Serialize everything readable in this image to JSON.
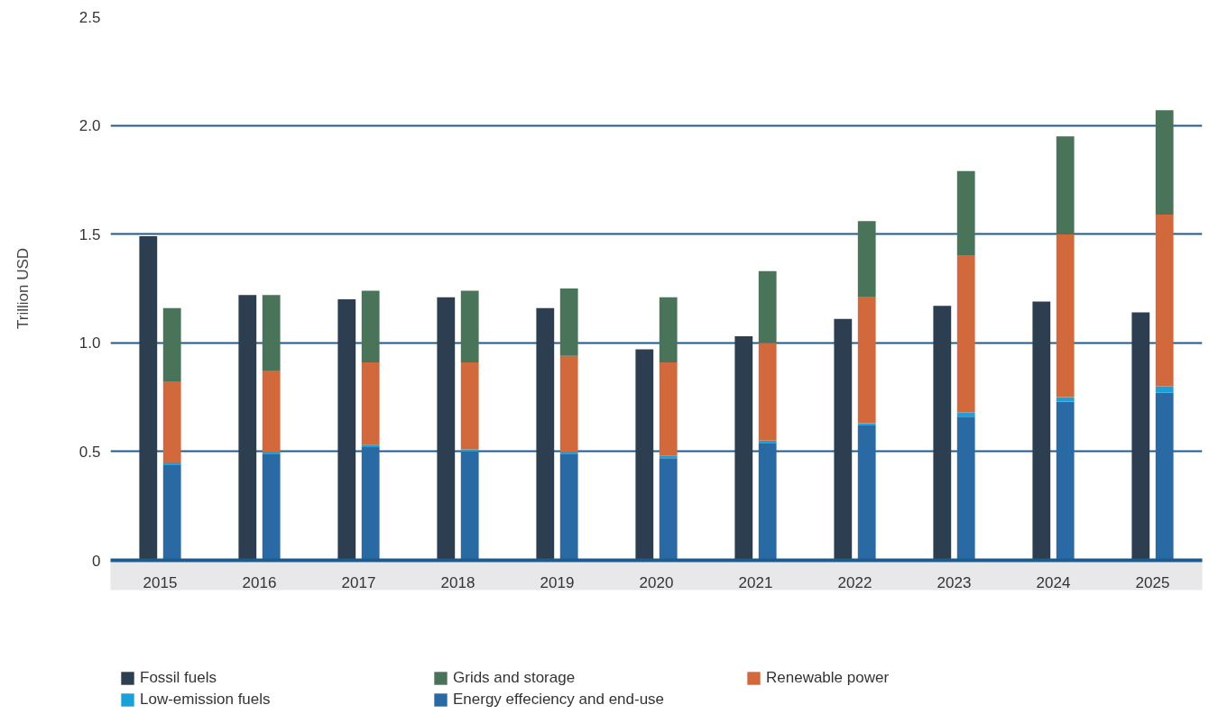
{
  "chart_data": {
    "type": "bar",
    "ylabel": "Trillion USD",
    "categories": [
      "2015",
      "2016",
      "2017",
      "2018",
      "2019",
      "2020",
      "2021",
      "2022",
      "2023",
      "2024",
      "2025"
    ],
    "series": [
      {
        "name": "Fossil fuels",
        "color": "#2c3e50",
        "values": [
          1.49,
          1.22,
          1.2,
          1.21,
          1.16,
          0.97,
          1.03,
          1.11,
          1.17,
          1.19,
          1.14
        ]
      },
      {
        "name": "Energy effeciency and end-use",
        "color": "#2a6aa4",
        "base": [
          0,
          0,
          0,
          0,
          0,
          0,
          0,
          0,
          0,
          0,
          0
        ],
        "values": [
          0.44,
          0.49,
          0.52,
          0.5,
          0.49,
          0.47,
          0.54,
          0.62,
          0.66,
          0.73,
          0.77
        ]
      },
      {
        "name": "Low-emission fuels",
        "color": "#1ba0d8",
        "base": [
          0.44,
          0.49,
          0.52,
          0.5,
          0.49,
          0.47,
          0.54,
          0.62,
          0.66,
          0.73,
          0.77
        ],
        "values": [
          0.01,
          0.01,
          0.01,
          0.01,
          0.01,
          0.01,
          0.01,
          0.01,
          0.02,
          0.02,
          0.03
        ]
      },
      {
        "name": "Renewable power",
        "color": "#d2693c",
        "base": [
          0.45,
          0.5,
          0.53,
          0.51,
          0.5,
          0.48,
          0.55,
          0.63,
          0.68,
          0.75,
          0.8
        ],
        "values": [
          0.37,
          0.37,
          0.38,
          0.4,
          0.44,
          0.43,
          0.45,
          0.58,
          0.72,
          0.75,
          0.79
        ]
      },
      {
        "name": "Grids and storage",
        "color": "#4a7459",
        "base": [
          0.82,
          0.87,
          0.91,
          0.91,
          0.94,
          0.91,
          1.0,
          1.21,
          1.4,
          1.5,
          1.59
        ],
        "values": [
          0.34,
          0.35,
          0.33,
          0.33,
          0.31,
          0.3,
          0.33,
          0.35,
          0.39,
          0.45,
          0.48
        ]
      }
    ],
    "ylim": [
      0,
      2.5
    ],
    "yticks": [
      0,
      0.5,
      {
        "value": 1,
        "label": "1.0"
      },
      1.5,
      {
        "value": 2,
        "label": "2.0"
      },
      2.5
    ],
    "grid": "y",
    "legend": "bottom"
  }
}
